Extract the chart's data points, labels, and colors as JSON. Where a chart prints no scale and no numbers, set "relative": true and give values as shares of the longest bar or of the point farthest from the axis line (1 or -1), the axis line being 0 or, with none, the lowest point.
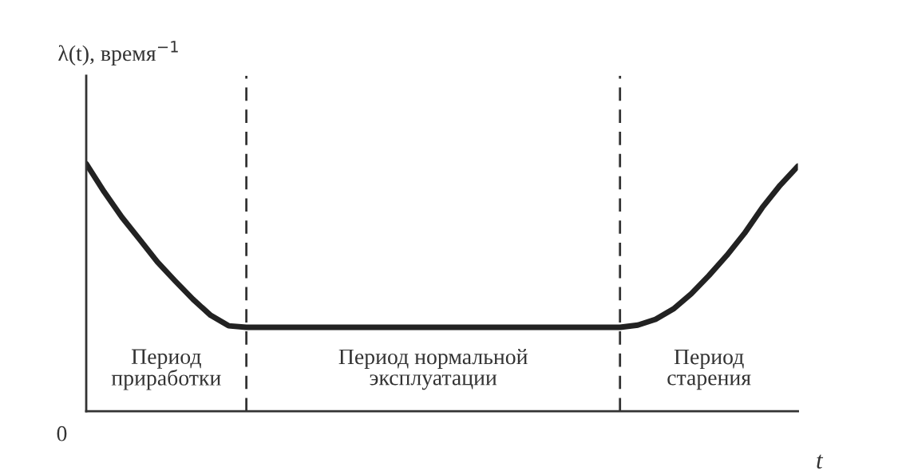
{
  "chart_data": {
    "type": "line",
    "relative": true,
    "xlabel": "t",
    "ylabel": "λ(t), время$^{−1}$",
    "categories": [
      null,
      null,
      null,
      null,
      null,
      null,
      null,
      null,
      null,
      null,
      null,
      null,
      null,
      null,
      null,
      null,
      null,
      null,
      null,
      null,
      null,
      null,
      null,
      null,
      null,
      null,
      null,
      null,
      null,
      null,
      null,
      null,
      null,
      null,
      null,
      null,
      null,
      null,
      null,
      null,
      null
    ],
    "series": [
      {
        "color": "#222222",
        "values": [
          1.0,
          0.887,
          0.784,
          0.694,
          0.603,
          0.526,
          0.452,
          0.387,
          0.345,
          0.339,
          0.339,
          0.339,
          0.339,
          0.339,
          0.339,
          0.339,
          0.339,
          0.339,
          0.339,
          0.339,
          0.339,
          0.339,
          0.339,
          0.339,
          0.339,
          0.339,
          0.339,
          0.339,
          0.339,
          0.339,
          0.339,
          0.348,
          0.371,
          0.413,
          0.474,
          0.548,
          0.629,
          0.719,
          0.823,
          0.913,
          0.99
        ]
      }
    ],
    "annotations": [
      "Период\nприработки",
      "Период нормальной\nэксплуатации",
      "Период\nстарения",
      "0"
    ],
    "grid": false,
    "legend": false,
    "marker": "none",
    "line_style": "solid"
  }
}
